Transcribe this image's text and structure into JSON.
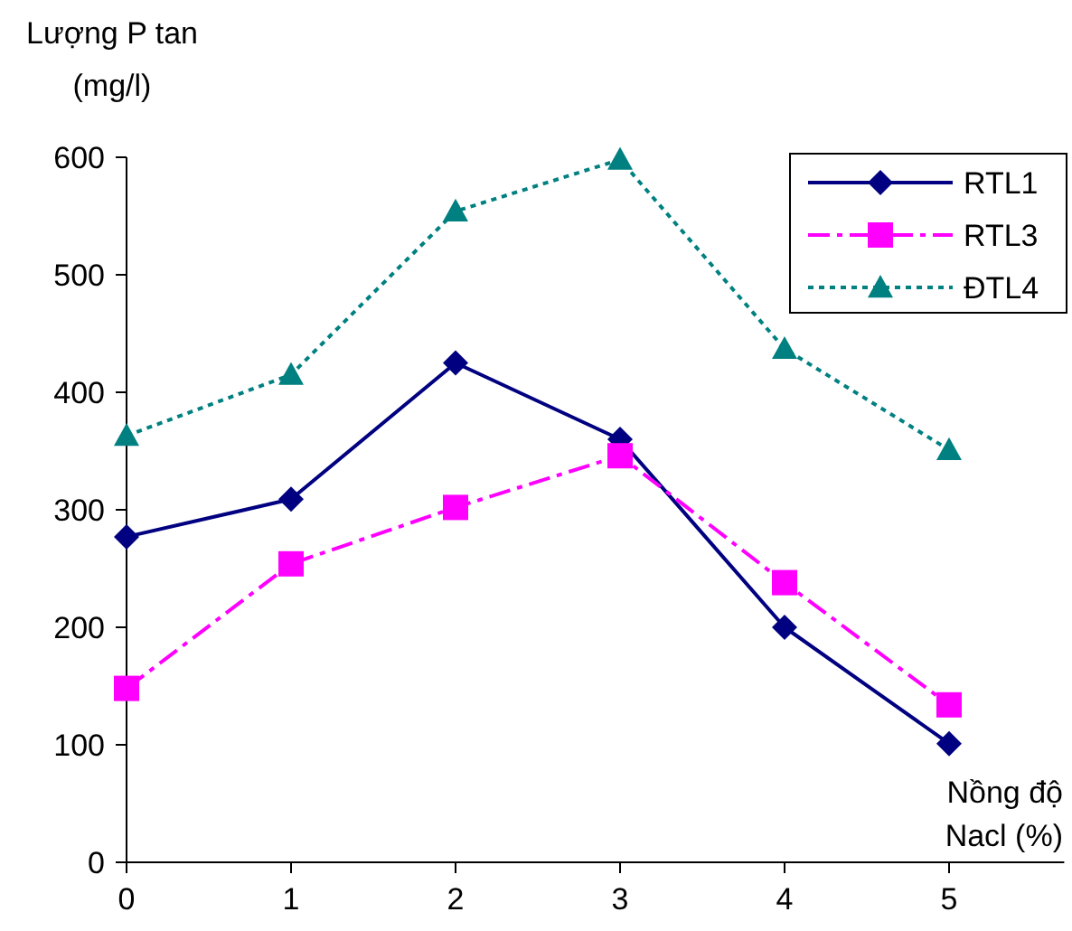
{
  "chart_data": {
    "type": "line",
    "ylabel": "Lượng P tan\n(mg/l)",
    "xlabel": "Nồng độ\nNacl (%)",
    "x": [
      0,
      1,
      2,
      3,
      4,
      5
    ],
    "xlim": [
      0,
      5.7
    ],
    "xticks": [
      0,
      1,
      2,
      3,
      4,
      5
    ],
    "ylim": [
      0,
      600
    ],
    "yticks": [
      0,
      100,
      200,
      300,
      400,
      500,
      600
    ],
    "grid": false,
    "legend": "top right",
    "series": [
      {
        "name": "RTL1",
        "color": "#000080",
        "marker": "diamond",
        "line_style": "solid",
        "values": [
          277,
          309,
          425,
          360,
          200,
          101
        ]
      },
      {
        "name": "RTL3",
        "color": "#ff00ff",
        "marker": "square",
        "line_style": "dashed",
        "values": [
          148,
          254,
          302,
          346,
          238,
          134
        ]
      },
      {
        "name": "ĐTL4",
        "color": "#008080",
        "marker": "triangle",
        "line_style": "dotted",
        "values": [
          363,
          415,
          554,
          598,
          437,
          351
        ]
      }
    ]
  }
}
